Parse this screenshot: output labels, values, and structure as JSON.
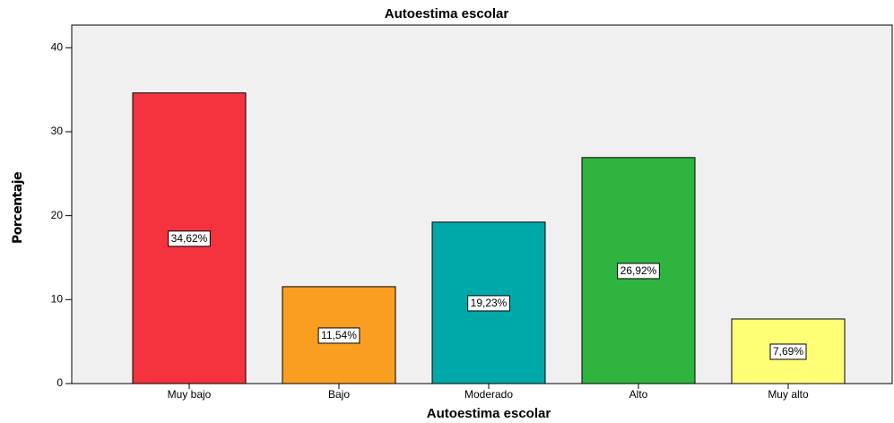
{
  "chart_data": {
    "type": "bar",
    "title": "Autoestima escolar",
    "xlabel": "Autoestima escolar",
    "ylabel": "Porcentaje",
    "categories": [
      "Muy bajo",
      "Bajo",
      "Moderado",
      "Alto",
      "Muy alto"
    ],
    "values": [
      34.62,
      11.54,
      19.23,
      26.92,
      7.69
    ],
    "value_labels": [
      "34,62%",
      "11,54%",
      "19,23%",
      "26,92%",
      "7,69%"
    ],
    "colors": [
      "#f5333f",
      "#fa9e22",
      "#00a9a9",
      "#2fb53f",
      "#ffff75"
    ],
    "ylim": [
      0,
      42.7
    ],
    "yticks": [
      0,
      10,
      20,
      30,
      40
    ],
    "grid": false
  }
}
